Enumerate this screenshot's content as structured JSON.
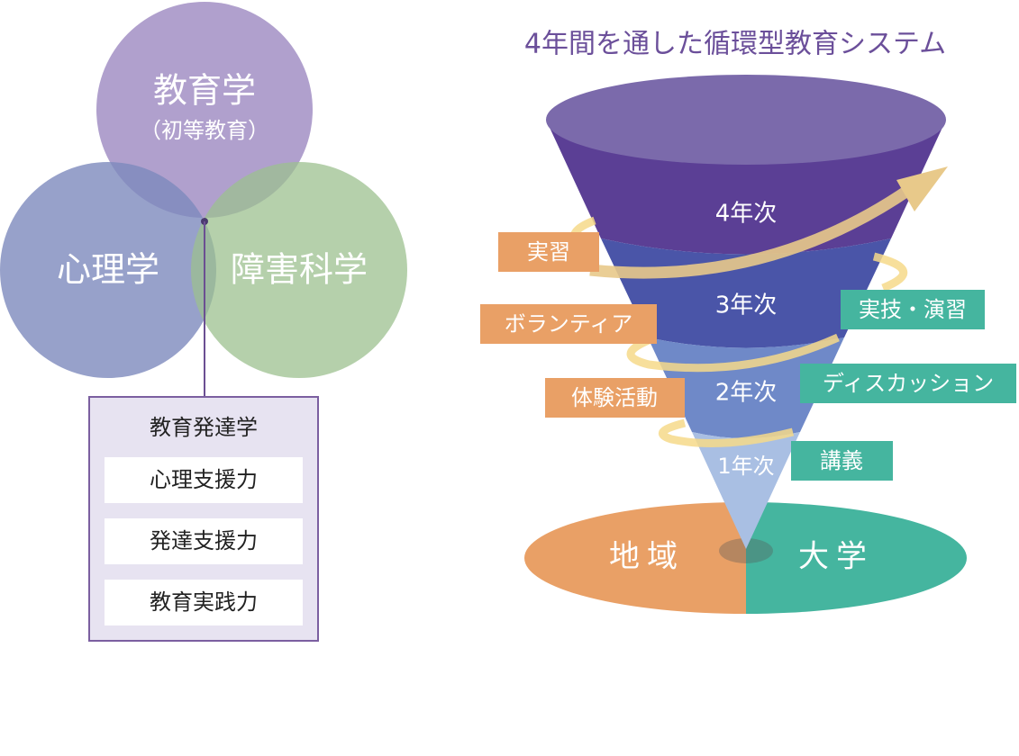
{
  "venn": {
    "circles": [
      {
        "label": "教育学",
        "sublabel": "（初等教育）"
      },
      {
        "label": "心理学"
      },
      {
        "label": "障害科学"
      }
    ],
    "box": {
      "title": "教育発達学",
      "items": [
        "心理支援力",
        "発達支援力",
        "教育実践力"
      ]
    }
  },
  "cycle": {
    "title": "4年間を通した循環型教育システム",
    "levels": [
      "4年次",
      "3年次",
      "2年次",
      "1年次"
    ],
    "left_labels": [
      "実習",
      "ボランティア",
      "体験活動"
    ],
    "right_labels": [
      "実技・演習",
      "ディスカッション",
      "講義"
    ],
    "base": [
      "地域",
      "大学"
    ]
  }
}
